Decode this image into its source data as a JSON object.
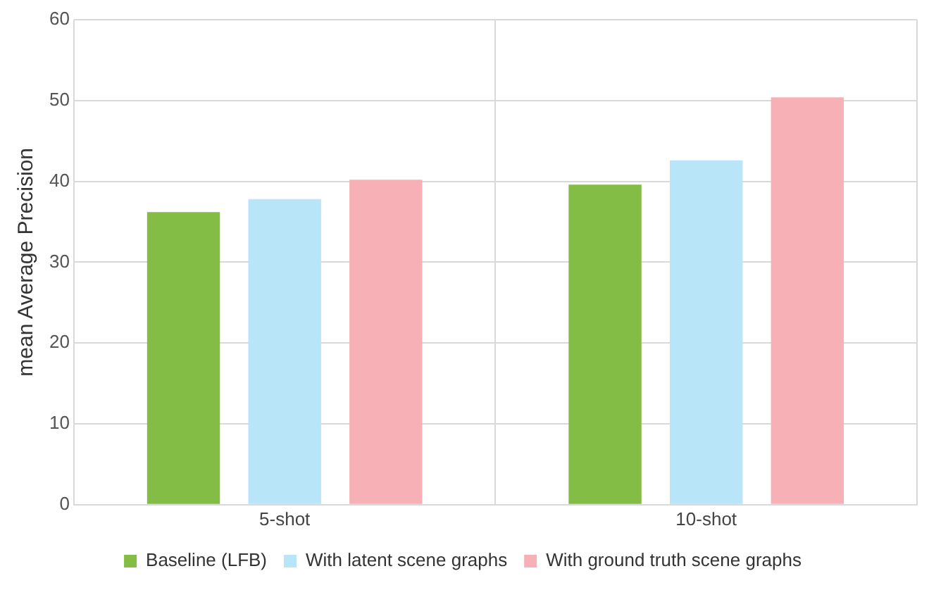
{
  "chart_data": {
    "type": "bar",
    "ylabel": "mean Average Precision",
    "categories": [
      "5-shot",
      "10-shot"
    ],
    "series": [
      {
        "name": "Baseline (LFB)",
        "color": "#84bd45",
        "values": [
          36.2,
          39.6
        ]
      },
      {
        "name": "With latent scene graphs",
        "color": "#b9e5f8",
        "values": [
          37.8,
          42.6
        ]
      },
      {
        "name": "With ground truth scene graphs",
        "color": "#f6b0b6",
        "values": [
          40.2,
          50.4
        ]
      }
    ],
    "ylim": [
      0,
      60
    ],
    "yticks": [
      0,
      10,
      20,
      30,
      40,
      50,
      60
    ],
    "grid": true,
    "legend": "bottom"
  }
}
